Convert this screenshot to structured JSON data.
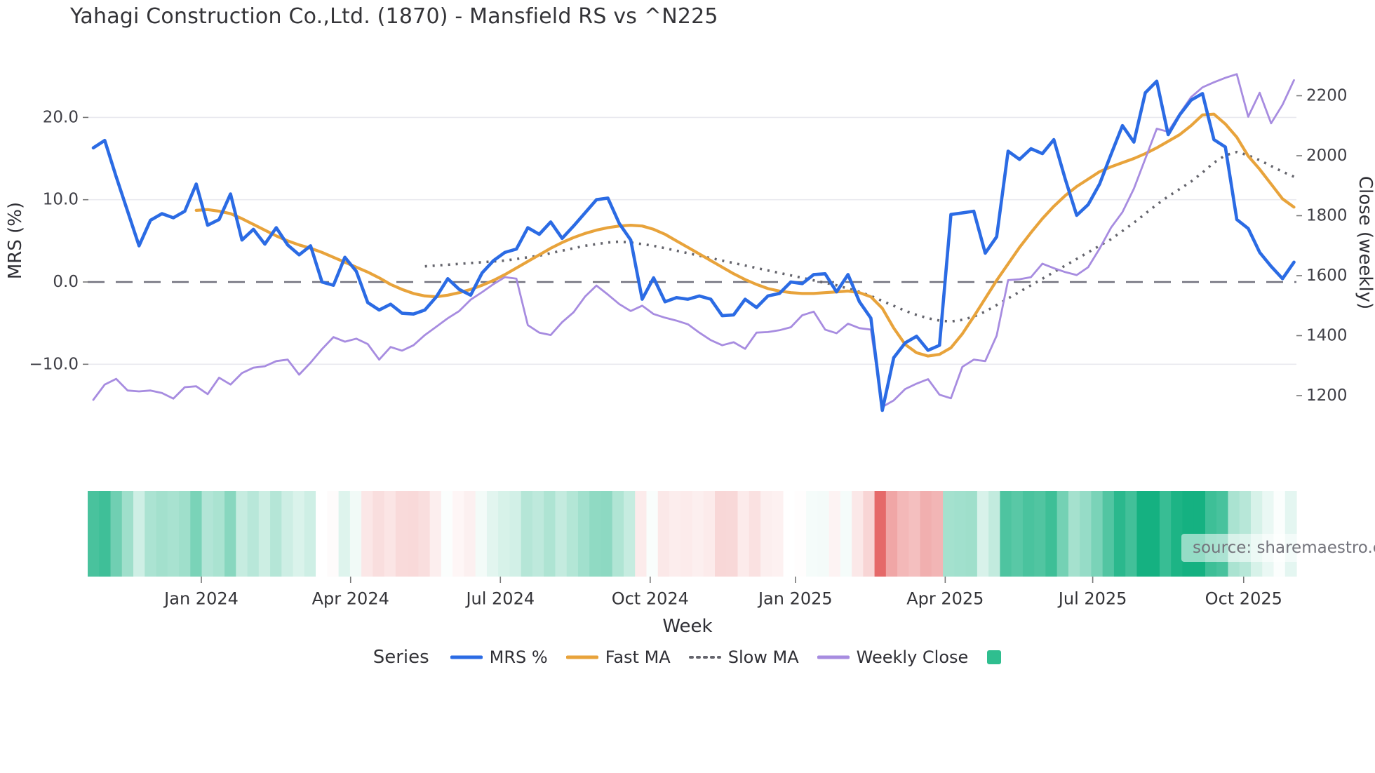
{
  "title": "Yahagi Construction Co.,Ltd. (1870) - Mansfield RS vs ^N225",
  "source_note": "source: sharemaestro.com",
  "axes": {
    "left": {
      "title": "MRS (%)",
      "ticks": [
        {
          "label": "20.0",
          "value": 20
        },
        {
          "label": "10.0",
          "value": 10
        },
        {
          "label": "0.0",
          "value": 0
        },
        {
          "label": "−10.0",
          "value": -10
        }
      ]
    },
    "right": {
      "title": "Close (weekly)",
      "ticks": [
        {
          "label": "2200",
          "value": 2200
        },
        {
          "label": "2000",
          "value": 2000
        },
        {
          "label": "1800",
          "value": 1800
        },
        {
          "label": "1600",
          "value": 1600
        },
        {
          "label": "1400",
          "value": 1400
        },
        {
          "label": "1200",
          "value": 1200
        }
      ]
    },
    "x": {
      "title": "Week",
      "ticks": [
        {
          "label": "Jan 2024",
          "week": 9.45
        },
        {
          "label": "Apr 2024",
          "week": 22.5
        },
        {
          "label": "Jul 2024",
          "week": 35.6
        },
        {
          "label": "Oct 2024",
          "week": 48.7
        },
        {
          "label": "Jan 2025",
          "week": 61.4
        },
        {
          "label": "Apr 2025",
          "week": 74.5
        },
        {
          "label": "Jul 2025",
          "week": 87.4
        },
        {
          "label": "Oct 2025",
          "week": 100.6
        }
      ]
    }
  },
  "legend": {
    "heading": "Series",
    "items": [
      {
        "label": "MRS %",
        "color": "#2b6be4",
        "style": "solid"
      },
      {
        "label": "Fast MA",
        "color": "#e8a33b",
        "style": "solid"
      },
      {
        "label": "Slow MA",
        "color": "#64646c",
        "style": "dotted"
      },
      {
        "label": "Weekly Close",
        "color": "#a78ce0",
        "style": "solid"
      },
      {
        "label": "",
        "color": "#2fbe8f",
        "style": "square"
      }
    ]
  },
  "colors": {
    "mrs": "#2b6be4",
    "fast_ma": "#e8a33b",
    "slow_ma": "#64646c",
    "weekly_close": "#a78ce0",
    "zero_line": "#50505e",
    "gridline": "#e9e9ef",
    "tick_text": "#3f3f46",
    "heatmap_positive": "#15b181",
    "heatmap_negative": "#e35b5b"
  },
  "chart_data": {
    "type": "line",
    "title": "Yahagi Construction Co.,Ltd. (1870) - Mansfield RS vs ^N225",
    "xlabel": "Week",
    "ylabel_left": "MRS (%)",
    "ylabel_right": "Close (weekly)",
    "x_unit": "week_index",
    "n_points": 106,
    "left_ylim": [
      -18,
      26
    ],
    "right_ylim": [
      1100,
      2320
    ],
    "grid": "horizontal-only",
    "legend_position": "bottom-center",
    "series": [
      {
        "name": "MRS %",
        "axis": "left",
        "color": "#2b6be4",
        "style": "solid",
        "values": [
          16.3,
          17.2,
          12.8,
          8.6,
          4.4,
          7.5,
          8.3,
          7.8,
          8.6,
          11.9,
          6.9,
          7.6,
          10.7,
          5.1,
          6.4,
          4.6,
          6.6,
          4.5,
          3.3,
          4.4,
          0.0,
          -0.4,
          3.0,
          1.3,
          -2.5,
          -3.4,
          -2.7,
          -3.8,
          -3.9,
          -3.4,
          -1.8,
          0.4,
          -0.9,
          -1.6,
          1.1,
          2.6,
          3.6,
          4.0,
          6.6,
          5.8,
          7.3,
          5.3,
          6.8,
          8.4,
          10.0,
          10.2,
          7.1,
          5.1,
          -2.1,
          0.5,
          -2.4,
          -1.9,
          -2.1,
          -1.7,
          -2.1,
          -4.1,
          -4.0,
          -2.1,
          -3.1,
          -1.7,
          -1.4,
          0.0,
          -0.2,
          0.9,
          1.0,
          -1.2,
          0.9,
          -2.4,
          -4.4,
          -15.6,
          -9.2,
          -7.4,
          -6.6,
          -8.3,
          -7.7,
          8.2,
          8.4,
          8.6,
          3.5,
          5.5,
          15.9,
          14.9,
          16.2,
          15.6,
          17.3,
          12.5,
          8.1,
          9.4,
          11.9,
          15.5,
          19.0,
          17.0,
          23.0,
          24.4,
          17.9,
          20.3,
          22.1,
          22.9,
          17.3,
          16.4,
          7.6,
          6.5,
          3.6,
          1.9,
          0.4,
          2.4
        ]
      },
      {
        "name": "Fast MA",
        "axis": "left",
        "color": "#e8a33b",
        "style": "solid",
        "values": [
          null,
          null,
          null,
          null,
          null,
          null,
          null,
          null,
          null,
          8.7,
          8.8,
          8.6,
          8.3,
          7.7,
          7.0,
          6.3,
          5.6,
          5.0,
          4.5,
          4.1,
          3.6,
          3.0,
          2.4,
          1.8,
          1.2,
          0.5,
          -0.3,
          -0.9,
          -1.4,
          -1.7,
          -1.8,
          -1.6,
          -1.3,
          -0.9,
          -0.4,
          0.2,
          0.9,
          1.7,
          2.5,
          3.3,
          4.1,
          4.8,
          5.4,
          5.9,
          6.3,
          6.6,
          6.8,
          6.9,
          6.8,
          6.4,
          5.8,
          5.0,
          4.2,
          3.4,
          2.6,
          1.8,
          1.0,
          0.3,
          -0.3,
          -0.8,
          -1.1,
          -1.3,
          -1.4,
          -1.4,
          -1.3,
          -1.2,
          -1.1,
          -1.3,
          -1.8,
          -3.2,
          -5.6,
          -7.6,
          -8.6,
          -9.0,
          -8.8,
          -8.0,
          -6.3,
          -4.2,
          -2.0,
          0.2,
          2.2,
          4.2,
          6.0,
          7.7,
          9.2,
          10.5,
          11.6,
          12.5,
          13.4,
          14.0,
          14.5,
          15.0,
          15.6,
          16.3,
          17.1,
          17.9,
          19.0,
          20.3,
          20.4,
          19.2,
          17.6,
          15.3,
          13.7,
          11.9,
          10.1,
          9.1
        ]
      },
      {
        "name": "Slow MA",
        "axis": "left",
        "color": "#64646c",
        "style": "dotted",
        "values": [
          null,
          null,
          null,
          null,
          null,
          null,
          null,
          null,
          null,
          null,
          null,
          null,
          null,
          null,
          null,
          null,
          null,
          null,
          null,
          null,
          null,
          null,
          null,
          null,
          null,
          null,
          null,
          null,
          null,
          1.9,
          2.0,
          2.1,
          2.2,
          2.3,
          2.4,
          2.5,
          2.6,
          2.8,
          3.0,
          3.2,
          3.5,
          3.8,
          4.1,
          4.4,
          4.6,
          4.8,
          4.9,
          4.8,
          4.6,
          4.4,
          4.1,
          3.8,
          3.5,
          3.2,
          2.9,
          2.6,
          2.3,
          2.0,
          1.7,
          1.4,
          1.1,
          0.8,
          0.5,
          0.2,
          -0.1,
          -0.4,
          -0.8,
          -1.2,
          -1.7,
          -2.3,
          -2.9,
          -3.5,
          -4.0,
          -4.4,
          -4.7,
          -4.8,
          -4.6,
          -4.2,
          -3.6,
          -2.8,
          -2.0,
          -1.2,
          -0.4,
          0.4,
          1.2,
          2.0,
          2.8,
          3.6,
          4.4,
          5.2,
          6.2,
          7.2,
          8.3,
          9.4,
          10.4,
          11.3,
          12.2,
          13.3,
          14.5,
          15.4,
          15.8,
          15.4,
          14.8,
          14.1,
          13.4,
          12.8
        ]
      },
      {
        "name": "Weekly Close",
        "axis": "right",
        "color": "#a78ce0",
        "style": "solid",
        "values": [
          1186,
          1237,
          1256,
          1217,
          1214,
          1217,
          1209,
          1190,
          1228,
          1231,
          1205,
          1260,
          1237,
          1275,
          1293,
          1298,
          1315,
          1320,
          1270,
          1310,
          1355,
          1395,
          1380,
          1390,
          1372,
          1320,
          1362,
          1350,
          1368,
          1402,
          1430,
          1458,
          1482,
          1520,
          1545,
          1572,
          1595,
          1590,
          1435,
          1410,
          1402,
          1445,
          1478,
          1530,
          1567,
          1537,
          1505,
          1482,
          1500,
          1472,
          1460,
          1450,
          1438,
          1410,
          1385,
          1368,
          1378,
          1356,
          1410,
          1412,
          1418,
          1428,
          1468,
          1480,
          1420,
          1408,
          1440,
          1425,
          1420,
          1162,
          1184,
          1222,
          1240,
          1255,
          1203,
          1191,
          1296,
          1320,
          1315,
          1400,
          1585,
          1588,
          1595,
          1640,
          1625,
          1612,
          1602,
          1628,
          1690,
          1760,
          1812,
          1890,
          1990,
          2090,
          2080,
          2140,
          2195,
          2228,
          2245,
          2260,
          2272,
          2130,
          2210,
          2108,
          2170,
          2252
        ]
      }
    ],
    "heatmap_strip": {
      "basis": "MRS %",
      "description": "weekly cells colored green for positive MRS, red for negative, intensity proportional to magnitude",
      "positive_color": "#15b181",
      "negative_color": "#e35b5b"
    }
  }
}
